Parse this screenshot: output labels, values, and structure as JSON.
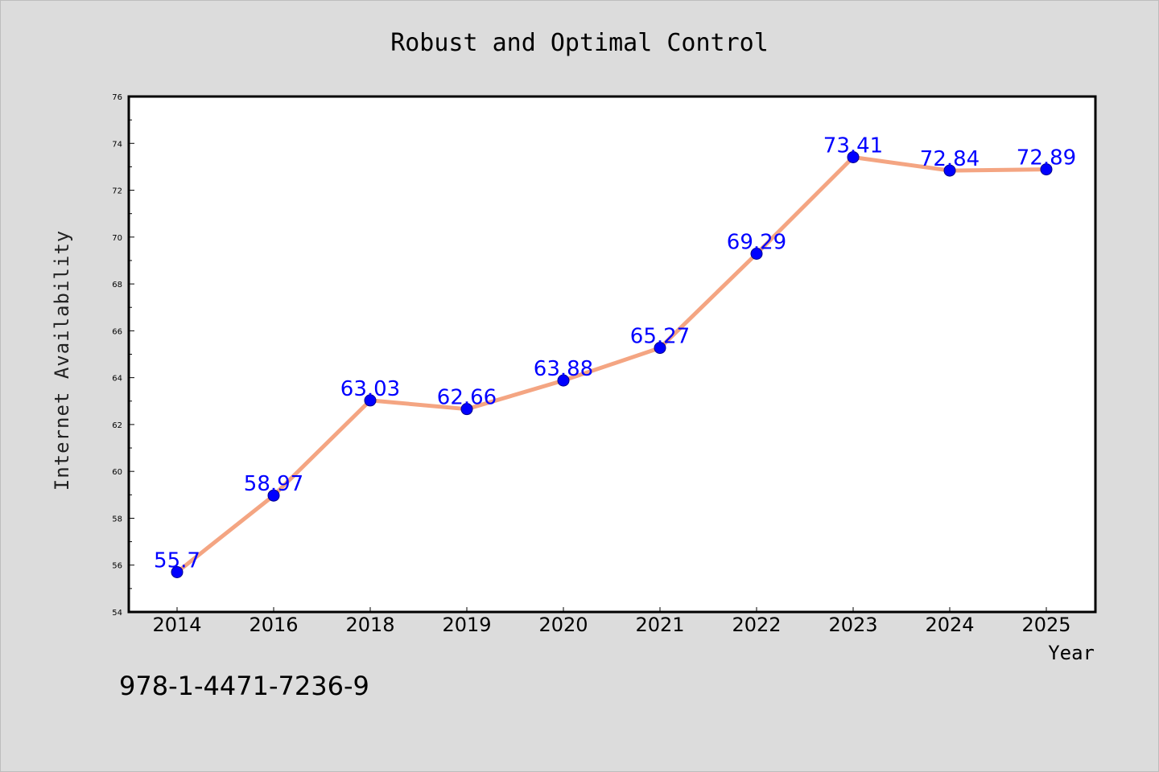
{
  "chart_data": {
    "type": "line",
    "title": "Robust and Optimal Control",
    "xlabel": "Year",
    "ylabel": "Internet Availability",
    "categories": [
      "2014",
      "2016",
      "2018",
      "2019",
      "2020",
      "2021",
      "2022",
      "2023",
      "2024",
      "2025"
    ],
    "series": [
      {
        "values": [
          55.7,
          58.97,
          63.03,
          62.66,
          63.88,
          65.27,
          69.29,
          73.41,
          72.84,
          72.89
        ],
        "labels": [
          "55.7",
          "58.97",
          "63.03",
          "62.66",
          "63.88",
          "65.27",
          "69.29",
          "73.41",
          "72.84",
          "72.89"
        ],
        "line_color": "#f4a582",
        "marker_color": "#0000ff"
      }
    ],
    "ylim": [
      54,
      76
    ],
    "yticks": [
      "54",
      "56",
      "58",
      "60",
      "62",
      "64",
      "66",
      "68",
      "70",
      "72",
      "74",
      "76"
    ],
    "grid": false,
    "legend": false
  },
  "annotation": {
    "isbn": "978-1-4471-7236-9"
  }
}
